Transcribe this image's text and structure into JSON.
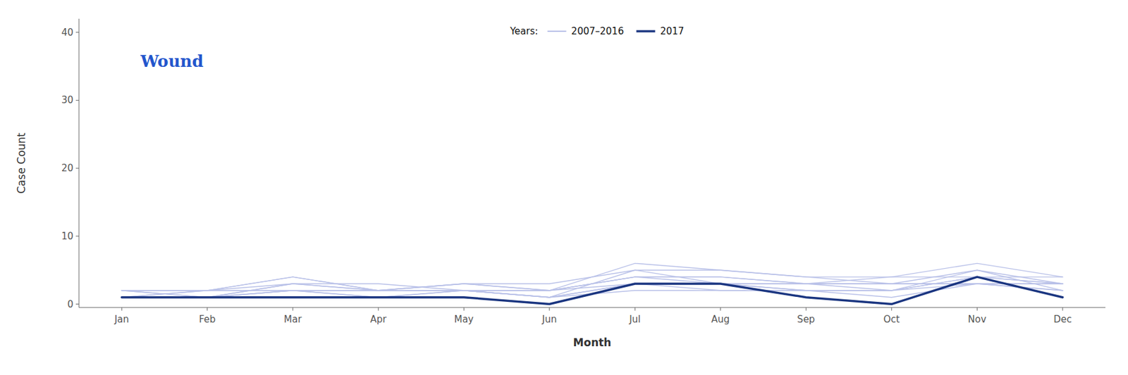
{
  "chart_data": {
    "type": "line",
    "title": "Wound",
    "x_label": "Month",
    "y_label": "Case Count",
    "categories": [
      "Jan",
      "Feb",
      "Mar",
      "Apr",
      "May",
      "Jun",
      "Jul",
      "Aug",
      "Sep",
      "Oct",
      "Nov",
      "Dec"
    ],
    "series": [
      {
        "name": "2007–2016",
        "color": "#b8c0e8",
        "values": [
          1,
          2,
          4,
          2,
          2,
          1,
          3,
          3,
          2,
          2,
          4,
          3
        ]
      },
      {
        "name": "2007–2016",
        "color": "#b8c0e8",
        "values": [
          2,
          1,
          3,
          2,
          3,
          2,
          4,
          4,
          3,
          3,
          3,
          3
        ]
      },
      {
        "name": "2007–2016",
        "color": "#b8c0e8",
        "values": [
          1,
          1,
          2,
          1,
          2,
          1,
          2,
          2,
          2,
          2,
          5,
          2
        ]
      },
      {
        "name": "2007–2016",
        "color": "#b8c0e8",
        "values": [
          2,
          2,
          3,
          2,
          2,
          1,
          5,
          3,
          3,
          4,
          4,
          4
        ]
      },
      {
        "name": "2007–2016",
        "color": "#b8c0e8",
        "values": [
          1,
          1,
          2,
          2,
          3,
          2,
          6,
          5,
          4,
          3,
          3,
          3
        ]
      },
      {
        "name": "2007–2016",
        "color": "#b8c0e8",
        "values": [
          2,
          2,
          2,
          1,
          2,
          2,
          3,
          3,
          2,
          2,
          3,
          2
        ]
      },
      {
        "name": "2007–2016",
        "color": "#b8c0e8",
        "values": [
          1,
          1,
          3,
          3,
          2,
          2,
          4,
          4,
          3,
          3,
          5,
          3
        ]
      },
      {
        "name": "2007–2016",
        "color": "#b8c0e8",
        "values": [
          2,
          2,
          2,
          2,
          2,
          1,
          3,
          2,
          2,
          1,
          3,
          2
        ]
      },
      {
        "name": "2007–2016",
        "color": "#b8c0e8",
        "values": [
          1,
          2,
          4,
          2,
          3,
          3,
          5,
          5,
          4,
          4,
          6,
          4
        ]
      },
      {
        "name": "2007–2016",
        "color": "#b8c0e8",
        "values": [
          2,
          1,
          2,
          2,
          2,
          2,
          4,
          3,
          3,
          2,
          4,
          3
        ]
      },
      {
        "name": "2017",
        "color": "#1a3580",
        "values": [
          1,
          1,
          1,
          1,
          1,
          0,
          3,
          3,
          1,
          0,
          4,
          1
        ]
      }
    ],
    "legend_title": "Years:",
    "legend": "top",
    "ylim": [
      -0.5,
      42
    ],
    "yticks": [
      0,
      10,
      20,
      30,
      40
    ],
    "grid": false
  }
}
